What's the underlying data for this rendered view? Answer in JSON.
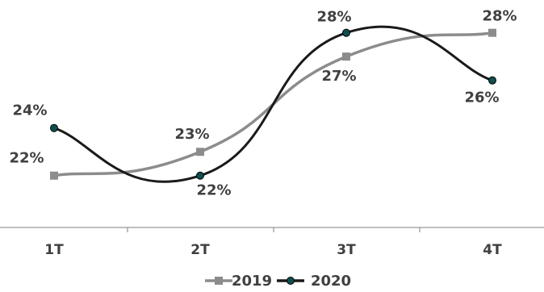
{
  "chart_data": {
    "type": "line",
    "categories": [
      "1T",
      "2T",
      "3T",
      "4T"
    ],
    "series": [
      {
        "name": "2019",
        "values": [
          22,
          23,
          27,
          28
        ],
        "labels": [
          "22%",
          "23%",
          "27%",
          "28%"
        ],
        "color": "#8c8c8c",
        "marker": "square"
      },
      {
        "name": "2020",
        "values": [
          24,
          22,
          28,
          26
        ],
        "labels": [
          "24%",
          "22%",
          "28%",
          "26%"
        ],
        "color": "#1a1a1a",
        "marker_fill": "#0f4f4f",
        "marker": "circle"
      }
    ],
    "ylim": [
      20.5,
      28.7
    ],
    "legend": "bottom-center",
    "grid": false
  }
}
